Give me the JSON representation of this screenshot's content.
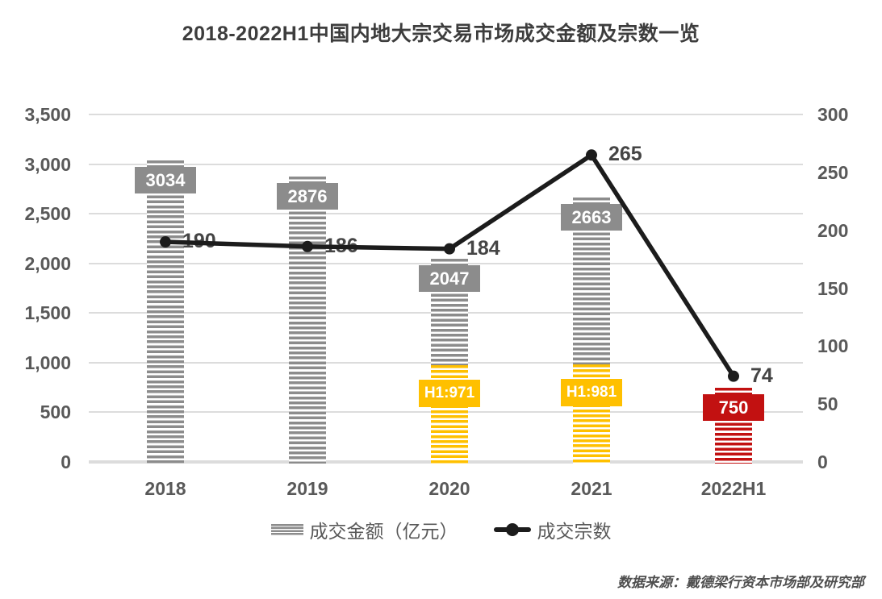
{
  "title": "2018-2022H1中国内地大宗交易市场成交金额及宗数一览",
  "source_note": "数据来源：戴德梁行资本市场部及研究部",
  "legend": {
    "bar_label": "成交金额（亿元）",
    "line_label": "成交宗数"
  },
  "colors": {
    "bar_gray": "#8c8c8c",
    "bar_yellow": "#ffc000",
    "bar_red": "#c21111",
    "line": "#1c1c1c",
    "grid": "#dcdcdc",
    "axis_text": "#595959",
    "annotation_text": "#454545",
    "title_text": "#3d3d3d",
    "label_text": "#ffffff"
  },
  "chart_data": {
    "type": "bar+line",
    "title": "2018-2022H1中国内地大宗交易市场成交金额及宗数一览",
    "categories": [
      "2018",
      "2019",
      "2020",
      "2021",
      "2022H1"
    ],
    "series": [
      {
        "name": "成交金额（亿元）",
        "type": "bar",
        "axis": "left",
        "values": [
          3034,
          2876,
          2047,
          2663,
          750
        ],
        "value_labels": [
          "3034",
          "2876",
          "2047",
          "2663",
          "750"
        ],
        "h1_values": [
          null,
          null,
          971,
          981,
          750
        ],
        "h1_labels": [
          null,
          null,
          "H1:971",
          "H1:981",
          null
        ],
        "bar_styles": [
          "gray",
          "gray",
          "gray-yellow",
          "gray-yellow",
          "red"
        ]
      },
      {
        "name": "成交宗数",
        "type": "line",
        "axis": "right",
        "values": [
          190,
          186,
          184,
          265,
          74
        ],
        "value_labels": [
          "190",
          "186",
          "184",
          "265",
          "74"
        ]
      }
    ],
    "left_axis": {
      "min": 0,
      "max": 3500,
      "tick_step": 500,
      "tick_labels": [
        "3,500",
        "3,000",
        "2,500",
        "2,000",
        "1,500",
        "1,000",
        "500",
        "0"
      ]
    },
    "right_axis": {
      "min": 0,
      "max": 300,
      "tick_step": 50,
      "tick_labels": [
        "300",
        "250",
        "200",
        "150",
        "100",
        "50",
        "0"
      ]
    },
    "grid": "horizontal",
    "legend_position": "bottom"
  }
}
